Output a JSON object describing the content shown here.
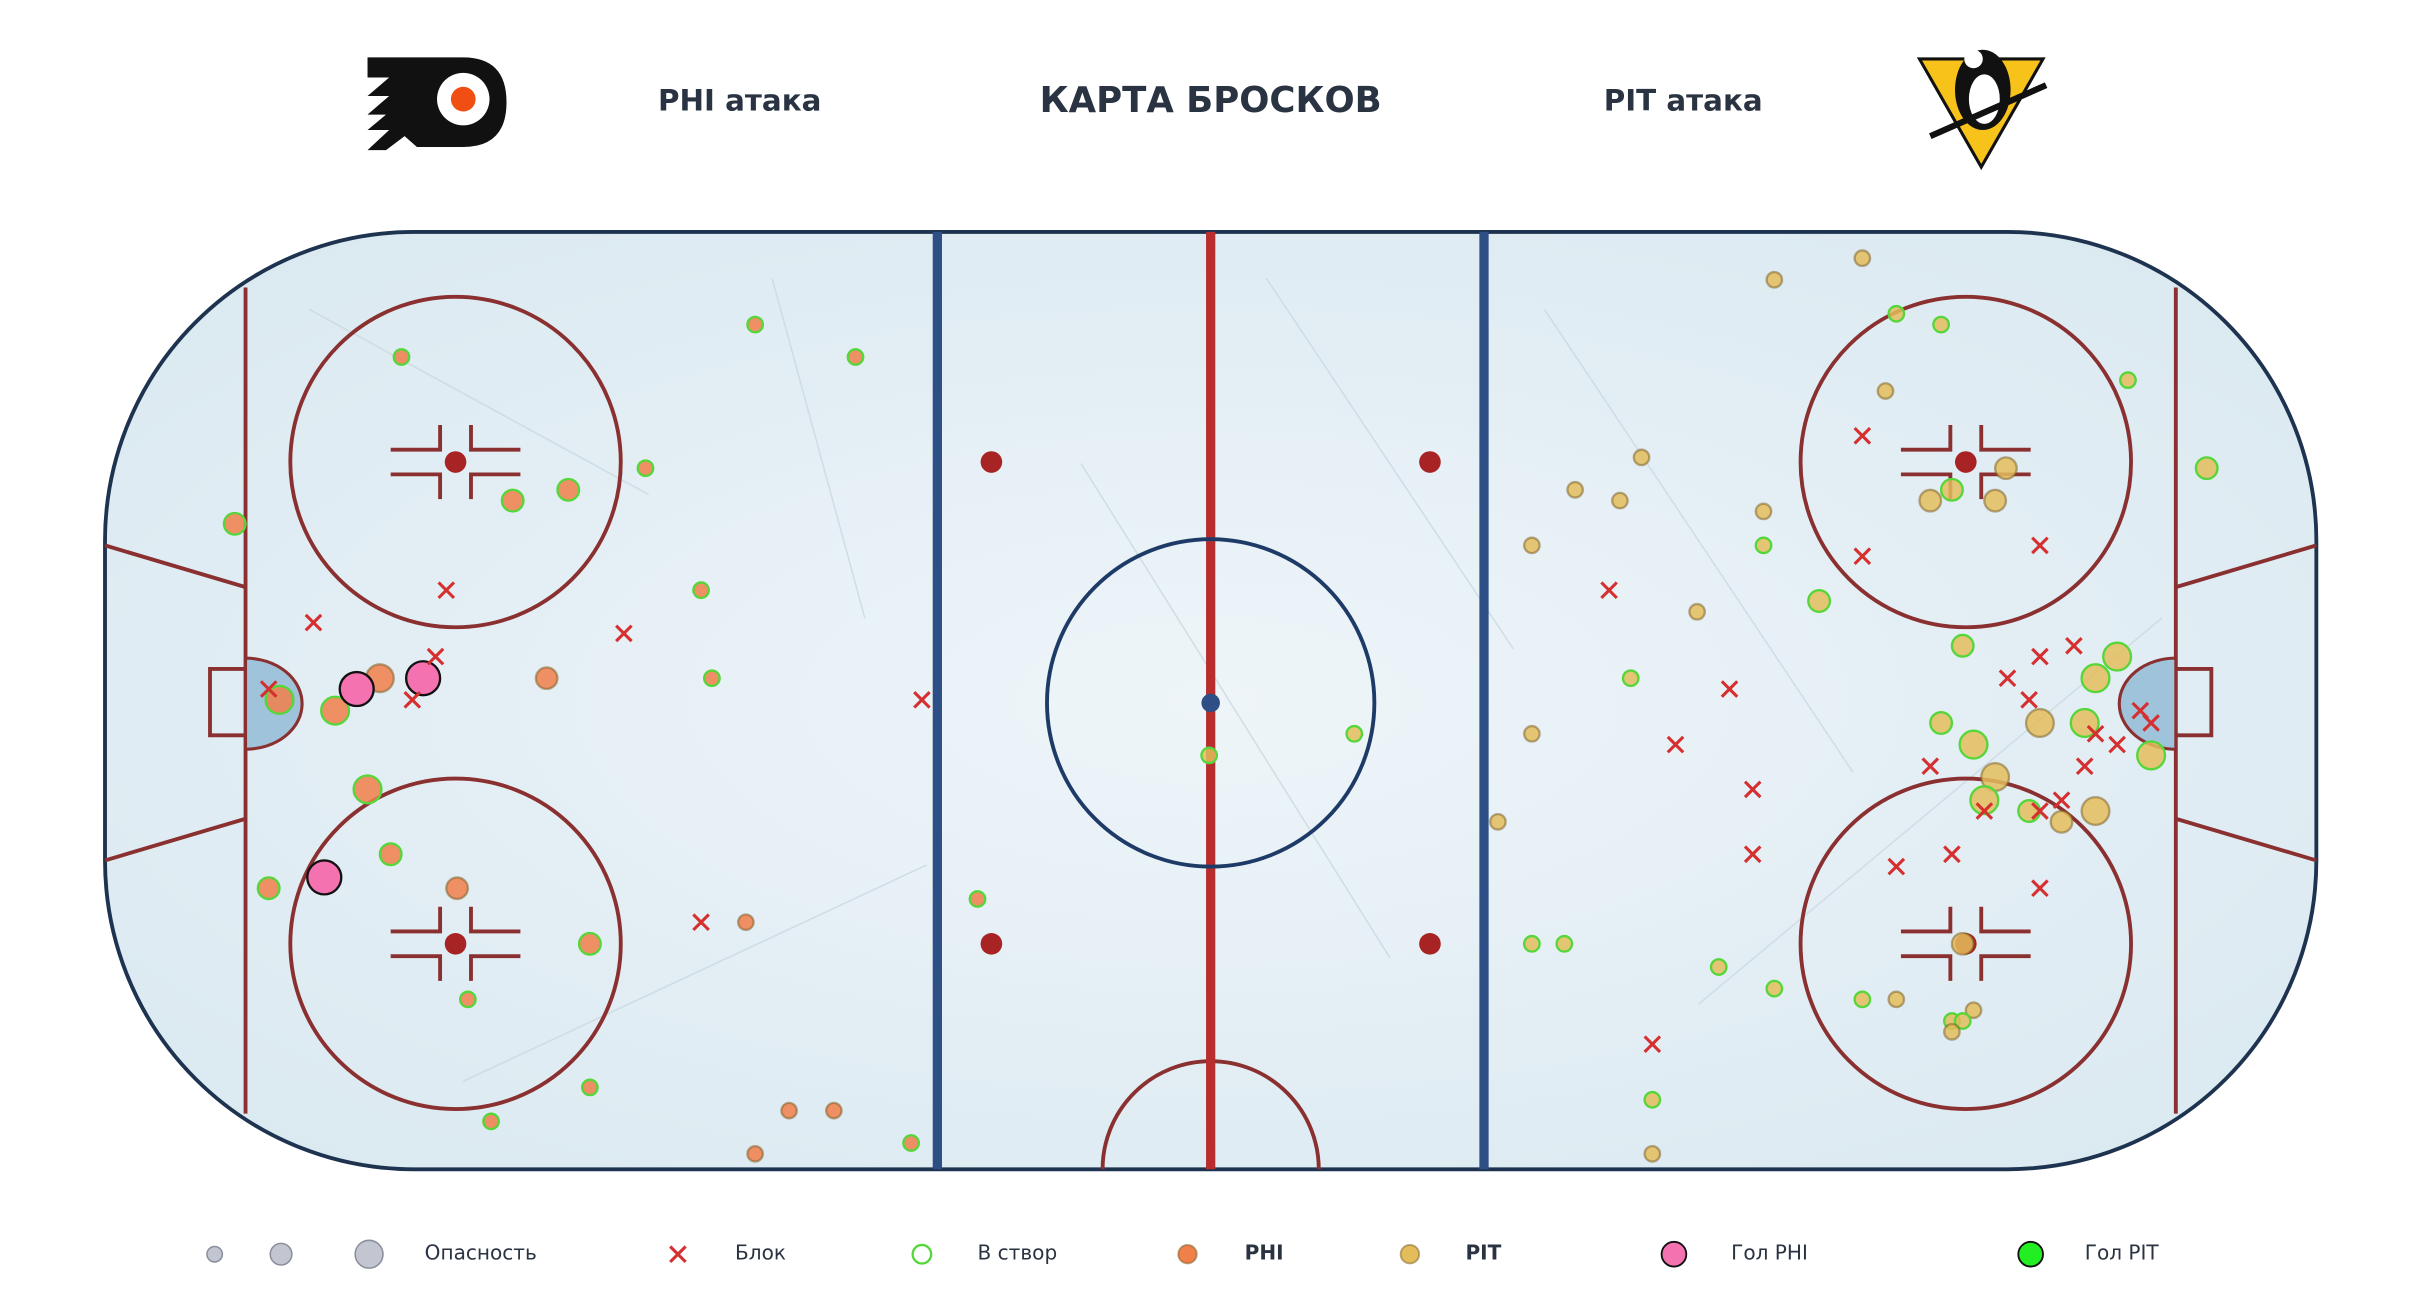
{
  "chart_data": {
    "type": "scatter",
    "title": "КАРТА БРОСКОВ",
    "left_label": "PHI атака",
    "right_label": "PIT атака",
    "xlim": [
      0,
      1432
    ],
    "ylim": [
      0,
      607
    ],
    "on_target_label": "В створ",
    "on_target_color": "#55d63a",
    "size_label": "Опасность",
    "size_legend": [
      1,
      2,
      3
    ],
    "series": [
      {
        "name": "PHI",
        "color": "#f07f4a",
        "x": [
          421,
          486,
          192,
          350,
          264,
          300,
          84,
          386,
          393,
          286,
          178,
          113,
          149,
          170,
          185,
          106,
          228,
          235,
          314,
          415,
          314,
          250,
          443,
          472,
          421,
          522,
          565
        ],
        "values": [
          547,
          526,
          526,
          454,
          433,
          440,
          418,
          375,
          318,
          318,
          318,
          304,
          297,
          246,
          204,
          182,
          182,
          110,
          146,
          160,
          53,
          31,
          38,
          38,
          10,
          17,
          175
        ],
        "sizes": [
          1,
          1,
          1,
          1,
          2,
          2,
          2,
          1,
          1,
          2,
          3,
          3,
          3,
          3,
          2,
          2,
          2,
          1,
          2,
          1,
          1,
          1,
          1,
          1,
          1,
          1,
          1
        ],
        "on_target": [
          true,
          true,
          true,
          true,
          true,
          true,
          true,
          true,
          true,
          false,
          false,
          true,
          true,
          true,
          true,
          true,
          false,
          true,
          true,
          false,
          true,
          true,
          false,
          false,
          false,
          true,
          true
        ]
      },
      {
        "name": "PIT",
        "color": "#e3bd5c",
        "x": [
          1081,
          1138,
          1160,
          1189,
          1153,
          1310,
          1361,
          995,
          952,
          981,
          1074,
          1074,
          924,
          1231,
          1196,
          1182,
          1224,
          1110,
          1031,
          1203,
          1303,
          1289,
          988,
          1189,
          1253,
          1282,
          1210,
          1325,
          1224,
          1217,
          1246,
          1267,
          1289,
          924,
          902,
          924,
          945,
          1045,
          1081,
          1138,
          1160,
          1203,
          1210,
          1196,
          1203,
          1196,
          1002,
          1002,
          715,
          809
        ],
        "values": [
          576,
          590,
          554,
          547,
          504,
          511,
          454,
          461,
          440,
          433,
          426,
          404,
          404,
          454,
          440,
          433,
          433,
          368,
          361,
          339,
          332,
          318,
          318,
          289,
          289,
          289,
          275,
          268,
          254,
          239,
          232,
          225,
          232,
          282,
          225,
          146,
          146,
          131,
          117,
          110,
          110,
          146,
          103,
          96,
          96,
          89,
          45,
          10,
          268,
          282
        ],
        "sizes": [
          1,
          1,
          1,
          1,
          1,
          1,
          2,
          1,
          1,
          1,
          1,
          1,
          1,
          2,
          2,
          2,
          2,
          2,
          1,
          2,
          3,
          3,
          1,
          2,
          3,
          3,
          3,
          3,
          3,
          3,
          2,
          2,
          3,
          1,
          1,
          1,
          1,
          1,
          1,
          1,
          1,
          2,
          1,
          1,
          1,
          1,
          1,
          1,
          1,
          1
        ],
        "on_target": [
          false,
          false,
          true,
          true,
          false,
          true,
          true,
          false,
          false,
          false,
          false,
          true,
          false,
          false,
          true,
          false,
          false,
          true,
          false,
          true,
          true,
          true,
          true,
          true,
          false,
          true,
          true,
          true,
          false,
          true,
          true,
          false,
          false,
          false,
          false,
          true,
          true,
          true,
          true,
          true,
          false,
          false,
          false,
          true,
          true,
          false,
          true,
          false,
          true,
          true
        ]
      },
      {
        "name": "Гол PHI",
        "color": "#f472b0",
        "x": [
          163,
          206,
          142
        ],
        "values": [
          311,
          318,
          189
        ],
        "sizes": [
          4,
          4,
          4
        ]
      },
      {
        "name": "Гол PIT",
        "color": "#22ee22",
        "x": [],
        "values": [],
        "sizes": []
      },
      {
        "name": "Блок",
        "color": "#d62f2f",
        "marker": "x",
        "x": [
          221,
          135,
          336,
          214,
          106,
          199,
          529,
          386,
          1138,
          1138,
          1253,
          974,
          1275,
          1253,
          1232,
          1052,
          1246,
          1318,
          1325,
          1289,
          1303,
          1017,
          1182,
          1282,
          1067,
          1267,
          1217,
          1253,
          1067,
          1196,
          1160,
          1253,
          1002
        ],
        "values": [
          375,
          354,
          347,
          332,
          311,
          304,
          304,
          160,
          475,
          397,
          404,
          375,
          339,
          332,
          318,
          311,
          304,
          297,
          289,
          282,
          275,
          275,
          261,
          261,
          246,
          239,
          232,
          232,
          204,
          204,
          196,
          182,
          81
        ]
      }
    ]
  }
}
